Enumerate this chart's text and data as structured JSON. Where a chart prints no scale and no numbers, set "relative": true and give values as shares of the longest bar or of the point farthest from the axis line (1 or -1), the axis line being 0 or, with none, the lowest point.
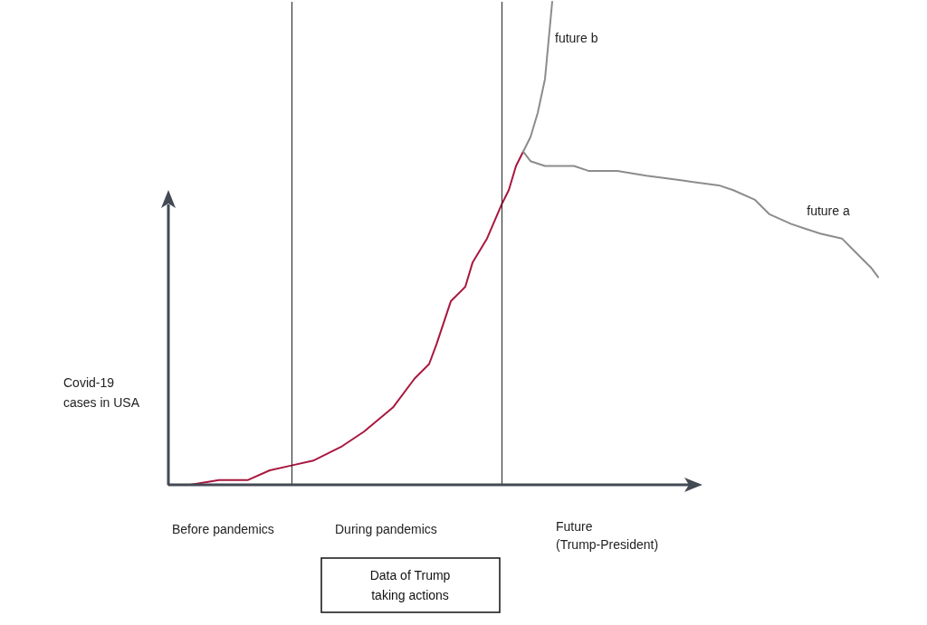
{
  "chart_data": {
    "type": "line",
    "relative": true,
    "ylabel": "Covid-19\ncases in USA",
    "grid": false,
    "marker": "none",
    "line_style": "solid",
    "annotations": [
      "Before pandemics",
      "During pandemics",
      "Future\n(Trump-President)",
      "Data of Trump\ntaking actions"
    ],
    "ref_lines": [
      {
        "axis": "x",
        "color": "#222222"
      },
      {
        "axis": "x",
        "color": "#222222"
      }
    ],
    "categories": [
      null,
      null,
      null,
      null,
      null,
      null,
      null,
      null,
      null,
      null,
      null,
      null,
      null,
      null,
      null,
      null,
      null,
      null,
      null,
      null,
      null,
      null,
      null,
      null,
      null,
      null,
      null,
      null,
      null,
      null,
      null,
      null,
      null,
      null,
      null,
      null,
      null,
      null,
      null,
      null,
      null,
      null,
      null,
      null,
      null,
      null,
      null,
      null,
      null,
      null,
      null,
      null,
      null,
      null,
      null,
      null,
      null,
      null,
      null,
      null,
      null,
      null,
      null,
      null,
      null,
      null,
      null,
      null,
      null,
      null,
      null,
      null,
      null,
      null,
      null,
      null,
      null,
      null,
      null,
      null,
      null,
      null,
      null,
      null,
      null,
      null,
      null,
      null,
      null,
      null,
      null,
      null,
      null,
      null,
      null,
      null,
      null,
      null,
      null
    ],
    "series": [
      {
        "color": "#a8173f",
        "values": [
          0,
          null,
          null,
          0,
          null,
          null,
          null,
          0.01,
          null,
          null,
          null,
          0.01,
          null,
          null,
          0.03,
          null,
          null,
          0.04,
          null,
          null,
          0.05,
          null,
          null,
          null,
          0.08,
          null,
          null,
          0.11,
          null,
          null,
          null,
          0.16,
          null,
          null,
          0.22,
          null,
          0.25,
          0.29,
          null,
          0.38,
          null,
          0.41,
          0.46,
          null,
          0.51,
          null,
          0.58,
          0.61,
          0.66,
          0.69,
          null,
          null,
          null,
          null,
          null,
          null,
          null,
          null,
          null,
          null,
          null,
          null,
          null,
          null,
          null,
          null,
          null,
          null,
          null,
          null,
          null,
          null,
          null,
          null,
          null,
          null,
          null,
          null,
          null,
          null,
          null,
          null,
          null,
          null,
          null,
          null,
          null,
          null,
          null,
          null,
          null,
          null,
          null,
          null,
          null,
          null,
          null,
          null,
          null
        ]
      },
      {
        "name": "future a",
        "color": "#8c8c8c",
        "values": [
          null,
          null,
          null,
          null,
          null,
          null,
          null,
          null,
          null,
          null,
          null,
          null,
          null,
          null,
          null,
          null,
          null,
          null,
          null,
          null,
          null,
          null,
          null,
          null,
          null,
          null,
          null,
          null,
          null,
          null,
          null,
          null,
          null,
          null,
          null,
          null,
          null,
          null,
          null,
          null,
          null,
          null,
          null,
          null,
          null,
          null,
          null,
          null,
          null,
          0.69,
          0.67,
          null,
          0.66,
          null,
          null,
          null,
          0.66,
          null,
          0.65,
          null,
          null,
          null,
          0.65,
          null,
          null,
          null,
          0.64,
          null,
          null,
          null,
          null,
          0.63,
          null,
          null,
          null,
          null,
          0.62,
          null,
          0.61,
          null,
          null,
          0.59,
          null,
          0.56,
          null,
          null,
          0.54,
          null,
          0.53,
          null,
          0.52,
          null,
          null,
          0.51,
          null,
          0.48,
          null,
          0.45,
          0.43
        ]
      },
      {
        "name": "future b",
        "color": "#8c8c8c",
        "values": [
          null,
          null,
          null,
          null,
          null,
          null,
          null,
          null,
          null,
          null,
          null,
          null,
          null,
          null,
          null,
          null,
          null,
          null,
          null,
          null,
          null,
          null,
          null,
          null,
          null,
          null,
          null,
          null,
          null,
          null,
          null,
          null,
          null,
          null,
          null,
          null,
          null,
          null,
          null,
          null,
          null,
          null,
          null,
          null,
          null,
          null,
          null,
          null,
          null,
          0.69,
          0.72,
          0.77,
          0.84,
          1,
          null,
          null,
          null,
          null,
          null,
          null,
          null,
          null,
          null,
          null,
          null,
          null,
          null,
          null,
          null,
          null,
          null,
          null,
          null,
          null,
          null,
          null,
          null,
          null,
          null,
          null,
          null,
          null,
          null,
          null,
          null,
          null,
          null,
          null,
          null,
          null,
          null,
          null,
          null,
          null,
          null,
          null,
          null,
          null,
          null
        ]
      }
    ]
  }
}
